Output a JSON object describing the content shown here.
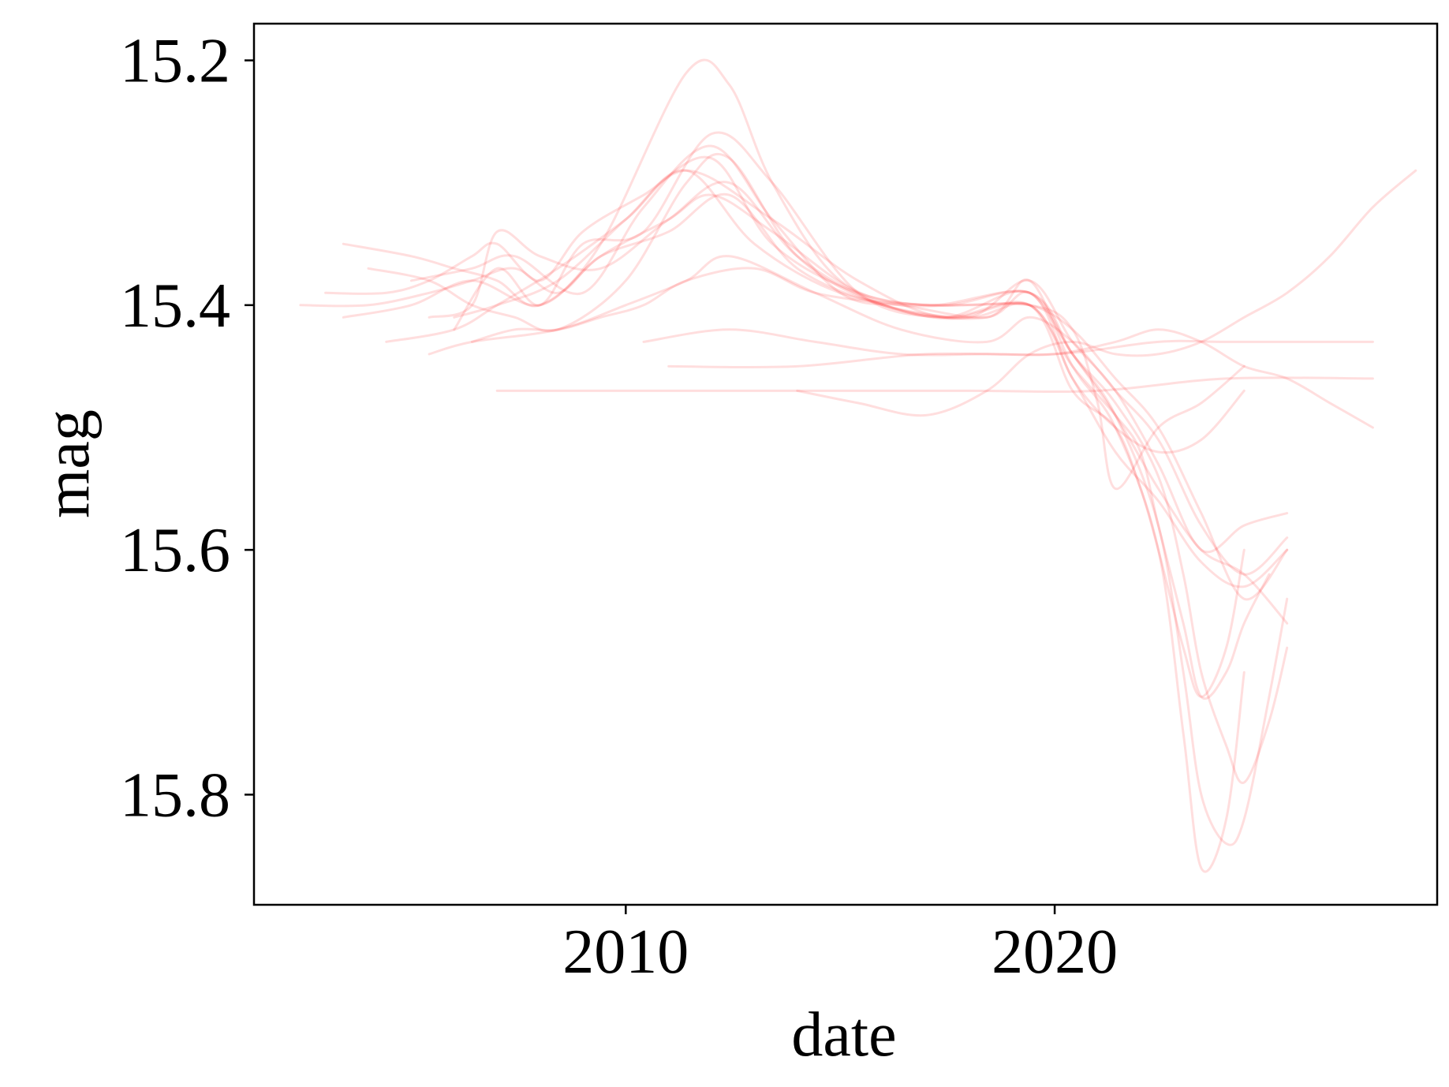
{
  "chart_data": {
    "type": "line",
    "xlabel": "date",
    "ylabel": "mag",
    "xlim": [
      "2001-05-01",
      "2028-12-01"
    ],
    "ylim": [
      15.89,
      15.17
    ],
    "y_inverted": true,
    "x_ticks": [
      {
        "value": "2010-01-01",
        "label": "2010"
      },
      {
        "value": "2020-01-01",
        "label": "2020"
      }
    ],
    "y_ticks": [
      {
        "value": 15.2,
        "label": "15.2"
      },
      {
        "value": 15.4,
        "label": "15.4"
      },
      {
        "value": 15.6,
        "label": "15.6"
      },
      {
        "value": 15.8,
        "label": "15.8"
      }
    ],
    "grid": false,
    "line_color": "#ff3333",
    "line_opacity": 0.16,
    "series": [
      {
        "x": [
          "2002-06",
          "2004-01",
          "2005-06",
          "2006-06",
          "2007-06",
          "2008-06",
          "2009-06",
          "2011-01",
          "2012-06",
          "2014-01",
          "2016-01",
          "2018-01",
          "2019-06",
          "2020-06",
          "2021-06",
          "2022-01",
          "2022-06",
          "2023-01",
          "2023-06",
          "2024-01",
          "2024-06",
          "2025-01"
        ],
        "y": [
          15.4,
          15.4,
          15.39,
          15.38,
          15.37,
          15.39,
          15.36,
          15.34,
          15.31,
          15.37,
          15.4,
          15.41,
          15.4,
          15.45,
          15.49,
          15.52,
          15.58,
          15.66,
          15.72,
          15.7,
          15.66,
          15.62
        ]
      },
      {
        "x": [
          "2003-01",
          "2004-06",
          "2005-06",
          "2006-06",
          "2007-01",
          "2008-01",
          "2009-01",
          "2010-06",
          "2012-01",
          "2013-06",
          "2015-06",
          "2017-06",
          "2019-06",
          "2020-06",
          "2021-06",
          "2022-06",
          "2023-01",
          "2023-06",
          "2024-01",
          "2024-06",
          "2025-01",
          "2025-06"
        ],
        "y": [
          15.39,
          15.39,
          15.38,
          15.36,
          15.35,
          15.38,
          15.34,
          15.31,
          15.28,
          15.35,
          15.39,
          15.4,
          15.39,
          15.44,
          15.48,
          15.54,
          15.62,
          15.7,
          15.76,
          15.79,
          15.74,
          15.68
        ]
      },
      {
        "x": [
          "2003-06",
          "2005-01",
          "2006-01",
          "2007-01",
          "2008-01",
          "2009-06",
          "2011-06",
          "2012-06",
          "2013-06",
          "2015-01",
          "2017-01",
          "2019-06",
          "2020-06",
          "2021-06",
          "2022-06",
          "2023-01",
          "2023-06",
          "2024-01",
          "2024-06",
          "2025-01",
          "2025-06"
        ],
        "y": [
          15.35,
          15.36,
          15.37,
          15.38,
          15.4,
          15.35,
          15.21,
          15.22,
          15.3,
          15.38,
          15.4,
          15.39,
          15.44,
          15.49,
          15.58,
          15.7,
          15.8,
          15.84,
          15.82,
          15.72,
          15.64
        ]
      },
      {
        "x": [
          "2004-01",
          "2005-06",
          "2006-06",
          "2007-06",
          "2008-06",
          "2010-01",
          "2011-06",
          "2012-06",
          "2014-01",
          "2016-01",
          "2018-06",
          "2019-06",
          "2020-06",
          "2021-06",
          "2022-06",
          "2023-01",
          "2023-06",
          "2024-01",
          "2024-06"
        ],
        "y": [
          15.37,
          15.38,
          15.4,
          15.41,
          15.42,
          15.38,
          15.3,
          15.28,
          15.36,
          15.4,
          15.41,
          15.38,
          15.45,
          15.5,
          15.6,
          15.75,
          15.86,
          15.82,
          15.7
        ]
      },
      {
        "x": [
          "2004-06",
          "2006-01",
          "2007-01",
          "2008-06",
          "2010-01",
          "2011-06",
          "2013-06",
          "2015-06",
          "2017-06",
          "2019-06",
          "2020-06",
          "2021-06",
          "2022-06",
          "2023-06",
          "2024-06",
          "2025-06"
        ],
        "y": [
          15.43,
          15.42,
          15.4,
          15.37,
          15.33,
          15.29,
          15.33,
          15.38,
          15.41,
          15.4,
          15.46,
          15.52,
          15.56,
          15.61,
          15.63,
          15.6
        ]
      },
      {
        "x": [
          "2005-06",
          "2006-06",
          "2007-01",
          "2008-01",
          "2009-06",
          "2011-01",
          "2012-06",
          "2014-01",
          "2016-01",
          "2018-01",
          "2019-06",
          "2020-06",
          "2021-06",
          "2022-06",
          "2023-06",
          "2024-06",
          "2025-06"
        ],
        "y": [
          15.41,
          15.4,
          15.34,
          15.36,
          15.37,
          15.33,
          15.3,
          15.36,
          15.4,
          15.41,
          15.38,
          15.43,
          15.47,
          15.53,
          15.6,
          15.58,
          15.57
        ]
      },
      {
        "x": [
          "2006-06",
          "2007-06",
          "2008-06",
          "2009-06",
          "2010-06",
          "2011-06",
          "2013-01",
          "2014-06",
          "2016-06",
          "2018-06",
          "2019-06",
          "2020-06",
          "2021-06",
          "2022-06",
          "2023-06",
          "2024-06",
          "2025-06"
        ],
        "y": [
          15.43,
          15.42,
          15.42,
          15.41,
          15.4,
          15.38,
          15.37,
          15.39,
          15.4,
          15.41,
          15.39,
          15.44,
          15.49,
          15.55,
          15.6,
          15.62,
          15.66
        ]
      },
      {
        "x": [
          "2007-01",
          "2010-01",
          "2014-01",
          "2018-01",
          "2021-01",
          "2024-01",
          "2027-06"
        ],
        "y": [
          15.47,
          15.47,
          15.47,
          15.47,
          15.47,
          15.46,
          15.46
        ]
      },
      {
        "x": [
          "2011-01",
          "2014-01",
          "2017-01",
          "2020-01",
          "2022-06",
          "2024-01",
          "2027-06"
        ],
        "y": [
          15.45,
          15.45,
          15.44,
          15.44,
          15.43,
          15.43,
          15.43
        ]
      },
      {
        "x": [
          "2014-01",
          "2015-06",
          "2017-01",
          "2018-06",
          "2019-06",
          "2020-06",
          "2021-06",
          "2022-06",
          "2023-06",
          "2024-06",
          "2025-06",
          "2026-06",
          "2027-06",
          "2028-06"
        ],
        "y": [
          15.47,
          15.48,
          15.49,
          15.47,
          15.44,
          15.43,
          15.44,
          15.44,
          15.43,
          15.41,
          15.39,
          15.36,
          15.32,
          15.29
        ]
      },
      {
        "x": [
          "2010-06",
          "2012-06",
          "2014-06",
          "2016-06",
          "2018-06",
          "2020-01",
          "2021-06",
          "2022-06",
          "2023-06",
          "2024-06",
          "2025-06",
          "2026-06",
          "2027-06"
        ],
        "y": [
          15.43,
          15.42,
          15.43,
          15.44,
          15.44,
          15.44,
          15.43,
          15.42,
          15.43,
          15.45,
          15.46,
          15.48,
          15.5
        ]
      },
      {
        "x": [
          "2005-01",
          "2006-06",
          "2007-06",
          "2009-01",
          "2010-06",
          "2012-01",
          "2013-06",
          "2015-01",
          "2016-06",
          "2018-01",
          "2019-06",
          "2020-06",
          "2021-06",
          "2022-06",
          "2023-06",
          "2024-06",
          "2025-06"
        ],
        "y": [
          15.38,
          15.37,
          15.36,
          15.39,
          15.32,
          15.27,
          15.33,
          15.39,
          15.4,
          15.4,
          15.4,
          15.42,
          15.46,
          15.5,
          15.57,
          15.64,
          15.6
        ]
      },
      {
        "x": [
          "2006-01",
          "2007-01",
          "2008-01",
          "2009-01",
          "2010-06",
          "2012-01",
          "2013-06",
          "2015-06",
          "2017-06",
          "2019-06",
          "2020-06",
          "2021-06",
          "2022-01",
          "2022-06",
          "2023-01",
          "2023-06",
          "2024-01",
          "2024-06"
        ],
        "y": [
          15.42,
          15.37,
          15.4,
          15.35,
          15.34,
          15.26,
          15.3,
          15.39,
          15.41,
          15.4,
          15.47,
          15.5,
          15.55,
          15.6,
          15.68,
          15.72,
          15.68,
          15.6
        ]
      },
      {
        "x": [
          "2003-06",
          "2005-01",
          "2006-06",
          "2008-01",
          "2009-06",
          "2011-01",
          "2012-01",
          "2013-06",
          "2015-06",
          "2017-06",
          "2019-06",
          "2020-06",
          "2021-06",
          "2022-06",
          "2023-06",
          "2024-06"
        ],
        "y": [
          15.41,
          15.4,
          15.38,
          15.4,
          15.36,
          15.33,
          15.31,
          15.34,
          15.39,
          15.41,
          15.39,
          15.46,
          15.5,
          15.52,
          15.51,
          15.47
        ]
      },
      {
        "x": [
          "2006-01",
          "2007-01",
          "2008-06",
          "2010-01",
          "2011-06",
          "2013-01",
          "2015-01",
          "2017-01",
          "2019-06",
          "2020-06",
          "2021-01",
          "2021-06",
          "2022-06",
          "2023-06",
          "2024-06"
        ],
        "y": [
          15.41,
          15.4,
          15.38,
          15.33,
          15.29,
          15.35,
          15.39,
          15.4,
          15.4,
          15.42,
          15.48,
          15.55,
          15.5,
          15.48,
          15.45
        ]
      },
      {
        "x": [
          "2005-06",
          "2006-06",
          "2008-06",
          "2010-01",
          "2011-06",
          "2012-06",
          "2014-06",
          "2016-06",
          "2018-06",
          "2019-06",
          "2020-06",
          "2021-06",
          "2022-06",
          "2023-06",
          "2024-06",
          "2025-06"
        ],
        "y": [
          15.44,
          15.43,
          15.42,
          15.4,
          15.38,
          15.36,
          15.39,
          15.42,
          15.43,
          15.41,
          15.43,
          15.47,
          15.51,
          15.58,
          15.62,
          15.59
        ]
      }
    ]
  }
}
